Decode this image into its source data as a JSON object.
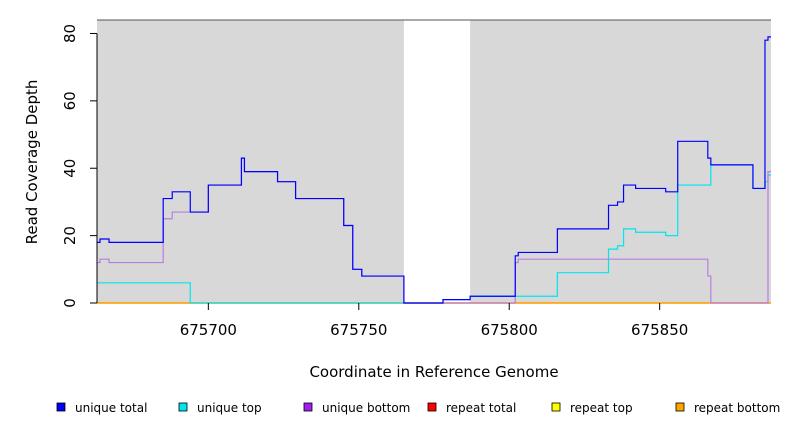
{
  "chart_data": {
    "type": "line",
    "title": "",
    "xlabel": "Coordinate in Reference Genome",
    "ylabel": "Read Coverage Depth",
    "xlim": [
      675663,
      675887
    ],
    "ylim": [
      0,
      80
    ],
    "x_ticks": [
      675700,
      675750,
      675800,
      675850
    ],
    "x_tick_labels": [
      "675700",
      "675750",
      "675800",
      "675850"
    ],
    "y_ticks": [
      0,
      20,
      40,
      60,
      80
    ],
    "y_tick_labels": [
      "0",
      "20",
      "40",
      "60",
      "80"
    ],
    "shaded_regions": [
      {
        "x_start": 675663,
        "x_end": 675765,
        "color": "#d8d8d8"
      },
      {
        "x_start": 675787,
        "x_end": 675887,
        "color": "#d8d8d8"
      }
    ],
    "series": [
      {
        "name": "unique total",
        "color": "#0000ff",
        "step": true,
        "points": [
          [
            675663,
            18
          ],
          [
            675664,
            19
          ],
          [
            675667,
            18
          ],
          [
            675685,
            31
          ],
          [
            675688,
            33
          ],
          [
            675694,
            27
          ],
          [
            675700,
            35
          ],
          [
            675711,
            43
          ],
          [
            675712,
            39
          ],
          [
            675723,
            36
          ],
          [
            675729,
            31
          ],
          [
            675745,
            23
          ],
          [
            675748,
            10
          ],
          [
            675751,
            8
          ],
          [
            675765,
            0
          ],
          [
            675778,
            1
          ],
          [
            675787,
            2
          ],
          [
            675802,
            14
          ],
          [
            675803,
            15
          ],
          [
            675816,
            22
          ],
          [
            675833,
            29
          ],
          [
            675836,
            30
          ],
          [
            675838,
            35
          ],
          [
            675842,
            34
          ],
          [
            675852,
            33
          ],
          [
            675856,
            48
          ],
          [
            675866,
            43
          ],
          [
            675867,
            41
          ],
          [
            675881,
            34
          ],
          [
            675885,
            78
          ],
          [
            675886,
            79
          ],
          [
            675887,
            79
          ]
        ]
      },
      {
        "name": "unique top",
        "color": "#00e5ee",
        "step": true,
        "points": [
          [
            675663,
            6
          ],
          [
            675694,
            0
          ],
          [
            675765,
            0
          ],
          [
            675778,
            1
          ],
          [
            675787,
            2
          ],
          [
            675802,
            2
          ],
          [
            675816,
            9
          ],
          [
            675833,
            16
          ],
          [
            675836,
            17
          ],
          [
            675838,
            22
          ],
          [
            675842,
            21
          ],
          [
            675852,
            20
          ],
          [
            675856,
            35
          ],
          [
            675867,
            41
          ],
          [
            675881,
            34
          ],
          [
            675885,
            36
          ],
          [
            675886,
            38
          ],
          [
            675887,
            38
          ]
        ]
      },
      {
        "name": "unique bottom",
        "color": "#b77fe0",
        "step": true,
        "points": [
          [
            675663,
            12
          ],
          [
            675664,
            13
          ],
          [
            675667,
            12
          ],
          [
            675685,
            25
          ],
          [
            675688,
            27
          ],
          [
            675694,
            27
          ],
          [
            675700,
            35
          ],
          [
            675711,
            43
          ],
          [
            675712,
            39
          ],
          [
            675723,
            36
          ],
          [
            675729,
            31
          ],
          [
            675745,
            23
          ],
          [
            675748,
            10
          ],
          [
            675751,
            8
          ],
          [
            675765,
            0
          ],
          [
            675802,
            12
          ],
          [
            675803,
            13
          ],
          [
            675866,
            8
          ],
          [
            675867,
            0
          ],
          [
            675885,
            0
          ],
          [
            675886,
            39
          ],
          [
            675887,
            39
          ]
        ]
      },
      {
        "name": "repeat total",
        "color": "#ff0000",
        "step": true,
        "points": [
          [
            675663,
            0
          ],
          [
            675887,
            0
          ]
        ]
      },
      {
        "name": "repeat top",
        "color": "#ffff00",
        "step": true,
        "points": [
          [
            675663,
            0
          ],
          [
            675887,
            0
          ]
        ]
      },
      {
        "name": "repeat bottom",
        "color": "#ffa500",
        "step": true,
        "points": [
          [
            675663,
            0
          ],
          [
            675887,
            0
          ]
        ]
      }
    ],
    "legend": {
      "placement": "bottom",
      "entries": [
        {
          "label": "unique total",
          "color": "#0000ff"
        },
        {
          "label": "unique top",
          "color": "#00e5ee"
        },
        {
          "label": "unique bottom",
          "color": "#a020f0"
        },
        {
          "label": "repeat total",
          "color": "#ff0000"
        },
        {
          "label": "repeat top",
          "color": "#ffff00"
        },
        {
          "label": "repeat bottom",
          "color": "#ffa500"
        }
      ]
    }
  }
}
